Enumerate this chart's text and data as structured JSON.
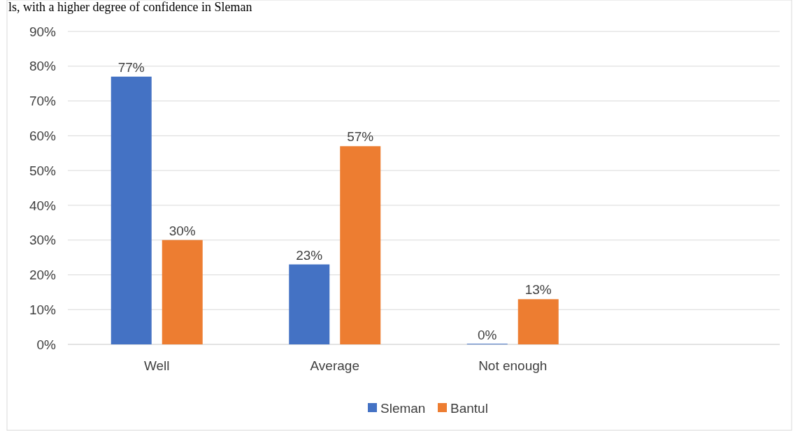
{
  "chart_data": {
    "type": "bar",
    "annotations": [
      "ls, with a higher degree of confidence in Sleman"
    ],
    "categories": [
      "Well",
      "Average",
      "Not enough",
      null
    ],
    "series": [
      {
        "name": "Sleman",
        "color": "#4472c4",
        "values": [
          77,
          23,
          0,
          null
        ],
        "value_labels": [
          "77%",
          "23%",
          "0%",
          null
        ]
      },
      {
        "name": "Bantul",
        "color": "#ed7d31",
        "values": [
          30,
          57,
          13,
          null
        ],
        "value_labels": [
          "30%",
          "57%",
          "13%",
          null
        ]
      }
    ],
    "ylim": [
      0,
      90
    ],
    "yticks": [
      {
        "value": 0,
        "label": "0%"
      },
      {
        "value": 10,
        "label": "10%"
      },
      {
        "value": 20,
        "label": "20%"
      },
      {
        "value": 30,
        "label": "30%"
      },
      {
        "value": 40,
        "label": "40%"
      },
      {
        "value": 50,
        "label": "50%"
      },
      {
        "value": 60,
        "label": "60%"
      },
      {
        "value": 70,
        "label": "70%"
      },
      {
        "value": 80,
        "label": "80%"
      },
      {
        "value": 90,
        "label": "90%"
      }
    ],
    "grid": "y",
    "legend": "bottom"
  }
}
